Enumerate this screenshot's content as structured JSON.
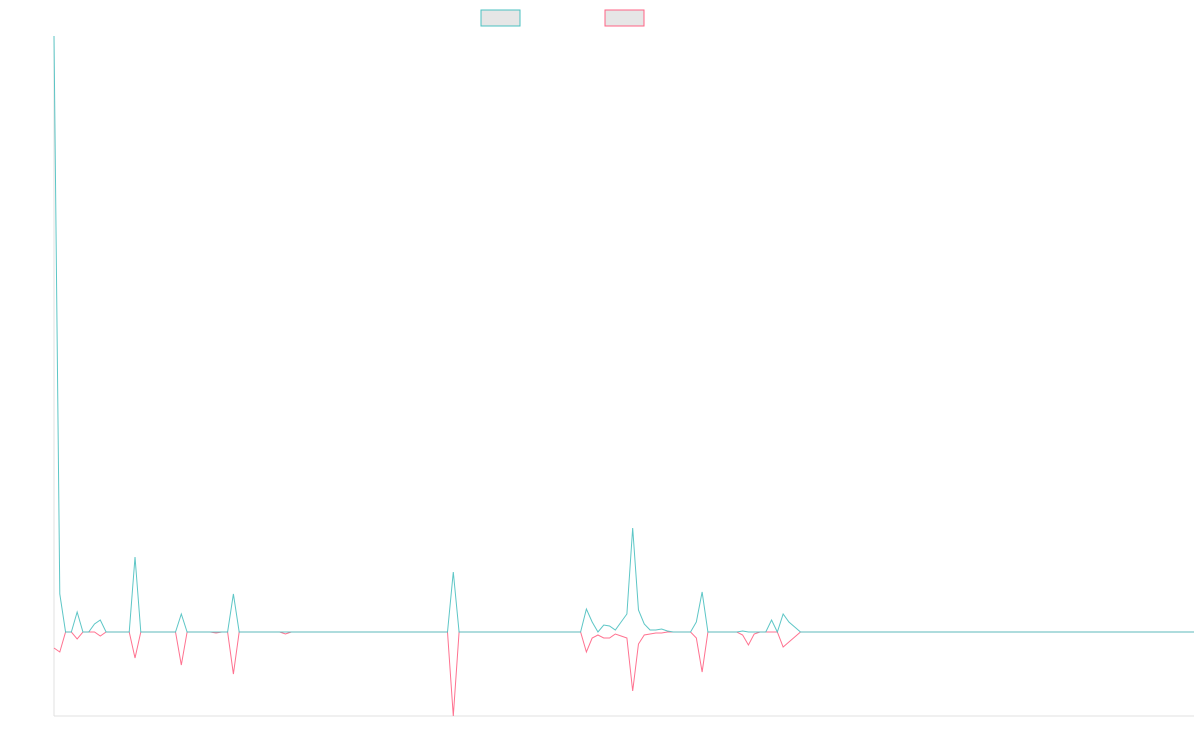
{
  "chart_data": {
    "type": "line",
    "xlim": [
      0,
      197
    ],
    "ylim": [
      -84,
      596
    ],
    "series": [
      {
        "color": "#4bc0c0",
        "values": [
          596,
          38,
          0,
          0,
          20,
          0,
          0,
          8,
          12,
          0,
          0,
          0,
          0,
          0,
          75,
          0,
          0,
          0,
          0,
          0,
          0,
          0,
          18,
          0,
          0,
          0,
          0,
          0,
          0,
          0,
          0,
          38,
          0,
          0,
          0,
          0,
          0,
          0,
          0,
          0,
          0,
          0,
          0,
          0,
          0,
          0,
          0,
          0,
          0,
          0,
          0,
          0,
          0,
          0,
          0,
          0,
          0,
          0,
          0,
          0,
          0,
          0,
          0,
          0,
          0,
          0,
          0,
          0,
          0,
          60,
          0,
          0,
          0,
          0,
          0,
          0,
          0,
          0,
          0,
          0,
          0,
          0,
          0,
          0,
          0,
          0,
          0,
          0,
          0,
          0,
          0,
          0,
          23,
          10,
          0,
          7,
          6,
          2,
          10,
          18,
          104,
          22,
          8,
          2,
          2,
          3,
          1,
          0,
          0,
          0,
          0,
          10,
          40,
          0,
          0,
          0,
          0,
          0,
          0,
          1,
          0,
          0,
          0,
          0,
          12,
          0,
          18,
          10,
          5,
          0,
          0,
          0,
          0,
          0,
          0,
          0,
          0,
          0,
          0,
          0,
          0,
          0,
          0,
          0,
          0,
          0,
          0,
          0,
          0,
          0,
          0,
          0,
          0,
          0,
          0,
          0,
          0,
          0,
          0,
          0,
          0,
          0,
          0,
          0,
          0,
          0,
          0,
          0,
          0,
          0,
          0,
          0,
          0,
          0,
          0,
          0,
          0,
          0,
          0,
          0,
          0,
          0,
          0,
          0,
          0,
          0,
          0,
          0,
          0,
          0,
          0,
          0,
          0,
          0,
          0,
          0,
          0,
          0
        ]
      },
      {
        "color": "#ff6384",
        "values": [
          -16,
          -20,
          0,
          0,
          -7,
          0,
          0,
          0,
          -4,
          0,
          0,
          0,
          0,
          0,
          -26,
          0,
          0,
          0,
          0,
          0,
          0,
          0,
          -33,
          0,
          0,
          0,
          0,
          0,
          -1,
          0,
          0,
          -42,
          0,
          0,
          0,
          0,
          0,
          0,
          0,
          0,
          -2,
          0,
          0,
          0,
          0,
          0,
          0,
          0,
          0,
          0,
          0,
          0,
          0,
          0,
          0,
          0,
          0,
          0,
          0,
          0,
          0,
          0,
          0,
          0,
          0,
          0,
          0,
          0,
          0,
          -84,
          0,
          0,
          0,
          0,
          0,
          0,
          0,
          0,
          0,
          0,
          0,
          0,
          0,
          0,
          0,
          0,
          0,
          0,
          0,
          0,
          0,
          0,
          -20,
          -6,
          -3,
          -6,
          -6,
          -2,
          -4,
          -6,
          -59,
          -12,
          -3,
          -2,
          -1,
          -1,
          0,
          0,
          0,
          0,
          0,
          -6,
          -40,
          0,
          0,
          0,
          0,
          0,
          0,
          -3,
          -13,
          -2,
          0,
          0,
          0,
          0,
          -15,
          -10,
          -5,
          0,
          0,
          0,
          0,
          0,
          0,
          0,
          0,
          0,
          0,
          0,
          0,
          0,
          0,
          0,
          0,
          0,
          0,
          0,
          0,
          0,
          0,
          0,
          0,
          0,
          0,
          0,
          0,
          0,
          0,
          0,
          0,
          0,
          0,
          0,
          0,
          0,
          0,
          0,
          0,
          0,
          0,
          0,
          0,
          0,
          0,
          0,
          0,
          0,
          0,
          0,
          0,
          0,
          0,
          0,
          0,
          0,
          0,
          0,
          0,
          0,
          0,
          0,
          0,
          0,
          0,
          0,
          0,
          0
        ]
      }
    ]
  }
}
